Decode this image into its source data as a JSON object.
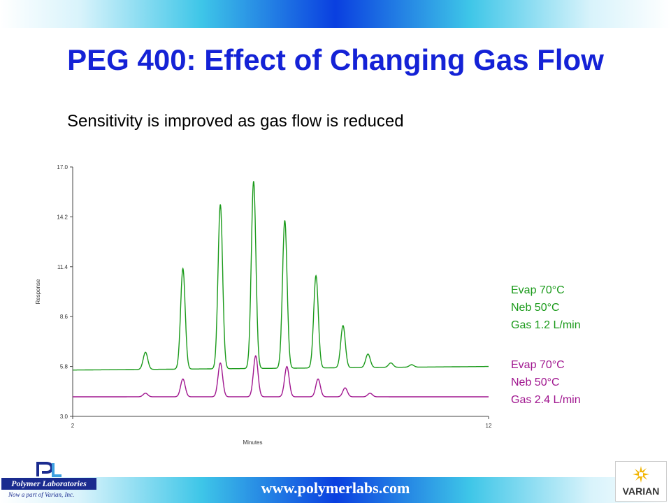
{
  "title": "PEG 400: Effect of Changing Gas Flow",
  "subtitle": "Sensitivity is improved as gas flow is reduced",
  "legend": {
    "green": [
      "Evap 70°C",
      "Neb 50°C",
      "Gas 1.2 L/min"
    ],
    "purple": [
      "Evap 70°C",
      "Neb 50°C",
      "Gas 2.4 L/min"
    ]
  },
  "footer": {
    "website": "www.polymerlabs.com",
    "pl_logo_text": "Polymer Laboratories",
    "pl_tagline": "Now a part of Varian, Inc.",
    "varian_logo_text": "VARIAN"
  },
  "colors": {
    "green": "#1a9a1a",
    "purple": "#a0168f",
    "title": "#1422d6"
  },
  "chart_data": {
    "type": "line",
    "xlabel": "Minutes",
    "ylabel": "Response",
    "xlim": [
      2,
      12
    ],
    "ylim": [
      3.0,
      17.0
    ],
    "yticks": [
      "17.0",
      "14.2",
      "11.4",
      "8.6",
      "5.8",
      "3.0"
    ],
    "xticks": [
      "2",
      "12"
    ],
    "series": [
      {
        "name": "Gas 1.2 L/min",
        "color": "#1a9a1a",
        "baseline": [
          [
            2.0,
            5.6
          ],
          [
            12.0,
            5.8
          ]
        ],
        "peaks": [
          {
            "x": 3.75,
            "y": 6.6
          },
          {
            "x": 4.65,
            "y": 11.3
          },
          {
            "x": 5.55,
            "y": 14.9
          },
          {
            "x": 6.35,
            "y": 16.2
          },
          {
            "x": 7.1,
            "y": 14.0
          },
          {
            "x": 7.85,
            "y": 10.9
          },
          {
            "x": 8.5,
            "y": 8.1
          },
          {
            "x": 9.1,
            "y": 6.5
          },
          {
            "x": 9.65,
            "y": 6.0
          },
          {
            "x": 10.15,
            "y": 5.9
          }
        ]
      },
      {
        "name": "Gas 2.4 L/min",
        "color": "#a0168f",
        "baseline": [
          [
            2.0,
            4.1
          ],
          [
            12.0,
            4.1
          ]
        ],
        "peaks": [
          {
            "x": 3.75,
            "y": 4.3
          },
          {
            "x": 4.65,
            "y": 5.1
          },
          {
            "x": 5.55,
            "y": 6.0
          },
          {
            "x": 6.4,
            "y": 6.4
          },
          {
            "x": 7.15,
            "y": 5.8
          },
          {
            "x": 7.9,
            "y": 5.1
          },
          {
            "x": 8.55,
            "y": 4.6
          },
          {
            "x": 9.15,
            "y": 4.3
          }
        ]
      }
    ]
  }
}
